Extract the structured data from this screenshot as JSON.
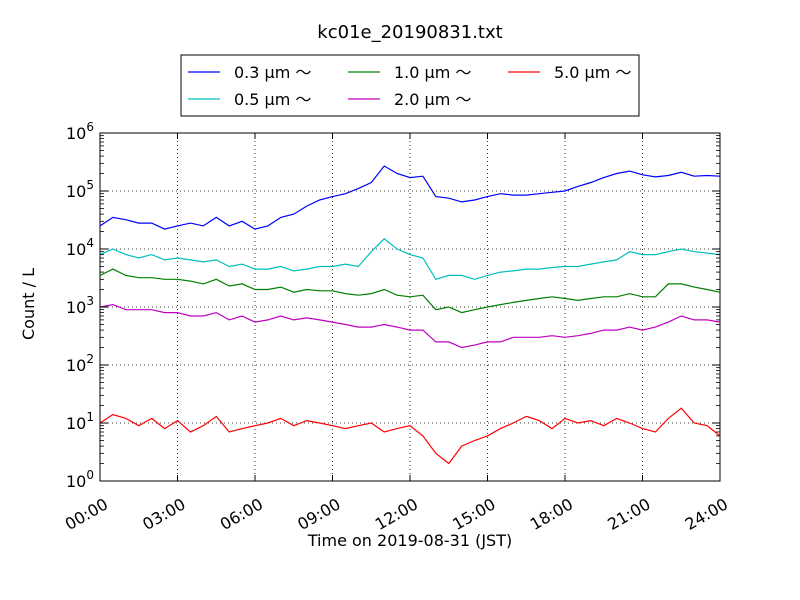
{
  "chart_data": {
    "type": "line",
    "title": "kc01e_20190831.txt",
    "xlabel": "Time on 2019-08-31 (JST)",
    "ylabel": "Count / L",
    "yscale": "log",
    "ylim": [
      1,
      1000000
    ],
    "xlim": [
      "00:00",
      "24:00"
    ],
    "grid": true,
    "legend_position": "top-center",
    "x_ticks": [
      "00:00",
      "03:00",
      "06:00",
      "09:00",
      "12:00",
      "15:00",
      "18:00",
      "21:00",
      "24:00"
    ],
    "y_ticks": [
      {
        "base": "10",
        "exp": "0"
      },
      {
        "base": "10",
        "exp": "1"
      },
      {
        "base": "10",
        "exp": "2"
      },
      {
        "base": "10",
        "exp": "3"
      },
      {
        "base": "10",
        "exp": "4"
      },
      {
        "base": "10",
        "exp": "5"
      },
      {
        "base": "10",
        "exp": "6"
      }
    ],
    "x_hours": [
      0.0,
      0.5,
      1.0,
      1.5,
      2.0,
      2.5,
      3.0,
      3.5,
      4.0,
      4.5,
      5.0,
      5.5,
      6.0,
      6.5,
      7.0,
      7.5,
      8.0,
      8.5,
      9.0,
      9.5,
      10.0,
      10.5,
      11.0,
      11.5,
      12.0,
      12.5,
      13.0,
      13.5,
      14.0,
      14.5,
      15.0,
      15.5,
      16.0,
      16.5,
      17.0,
      17.5,
      18.0,
      18.5,
      19.0,
      19.5,
      20.0,
      20.5,
      21.0,
      21.5,
      22.0,
      22.5,
      23.0,
      23.5,
      24.0
    ],
    "series": [
      {
        "name": "0.3 μm ～",
        "color": "#0000ff",
        "values": [
          25000,
          35000,
          32000,
          28000,
          28000,
          22000,
          25000,
          28000,
          25000,
          35000,
          25000,
          30000,
          22000,
          25000,
          35000,
          40000,
          55000,
          70000,
          80000,
          90000,
          110000,
          140000,
          270000,
          200000,
          170000,
          180000,
          80000,
          75000,
          65000,
          70000,
          80000,
          90000,
          85000,
          85000,
          90000,
          95000,
          100000,
          120000,
          140000,
          170000,
          200000,
          220000,
          190000,
          175000,
          185000,
          210000,
          180000,
          185000,
          180000
        ]
      },
      {
        "name": "0.5 μm ～",
        "color": "#00bfbf",
        "values": [
          8000,
          10000,
          8000,
          7000,
          8000,
          6500,
          7000,
          6500,
          6000,
          6500,
          5000,
          5500,
          4500,
          4500,
          5000,
          4200,
          4500,
          5000,
          5000,
          5500,
          5000,
          9000,
          15000,
          10000,
          8000,
          7000,
          3000,
          3500,
          3500,
          3000,
          3500,
          4000,
          4200,
          4500,
          4500,
          4800,
          5000,
          5000,
          5500,
          6000,
          6500,
          9000,
          8000,
          8000,
          9000,
          10000,
          9000,
          8500,
          8000
        ]
      },
      {
        "name": "1.0 μm ～",
        "color": "#008000",
        "values": [
          3500,
          4500,
          3500,
          3200,
          3200,
          3000,
          3000,
          2800,
          2500,
          3000,
          2300,
          2500,
          2000,
          2000,
          2200,
          1800,
          2000,
          1900,
          1900,
          1700,
          1600,
          1700,
          2000,
          1600,
          1500,
          1600,
          900,
          1000,
          800,
          900,
          1000,
          1100,
          1200,
          1300,
          1400,
          1500,
          1400,
          1300,
          1400,
          1500,
          1500,
          1700,
          1500,
          1500,
          2500,
          2500,
          2200,
          2000,
          1800
        ]
      },
      {
        "name": "2.0 μm ～",
        "color": "#bf00bf",
        "values": [
          1000,
          1100,
          900,
          900,
          900,
          800,
          800,
          700,
          700,
          800,
          600,
          700,
          550,
          600,
          700,
          600,
          650,
          600,
          550,
          500,
          450,
          450,
          500,
          450,
          400,
          400,
          250,
          250,
          200,
          220,
          250,
          250,
          300,
          300,
          300,
          320,
          300,
          320,
          350,
          400,
          400,
          450,
          400,
          450,
          550,
          700,
          600,
          600,
          550
        ]
      },
      {
        "name": "5.0 μm ～",
        "color": "#ff0000",
        "values": [
          10,
          14,
          12,
          9,
          12,
          8,
          11,
          7,
          9,
          13,
          7,
          8,
          9,
          10,
          12,
          9,
          11,
          10,
          9,
          8,
          9,
          10,
          7,
          8,
          9,
          6,
          3,
          2,
          4,
          5,
          6,
          8,
          10,
          13,
          11,
          8,
          12,
          10,
          11,
          9,
          12,
          10,
          8,
          7,
          12,
          18,
          10,
          9,
          6
        ]
      }
    ]
  }
}
